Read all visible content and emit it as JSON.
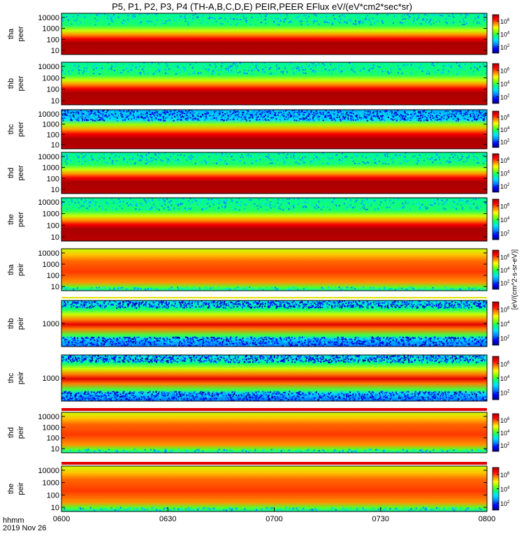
{
  "chart_data": {
    "type": "heatmap",
    "title": "P5, P1, P2, P3, P4 (TH-A,B,C,D,E) PEIR,PEER EFlux eV/(eV*cm2*sec*sr)",
    "x_ticks": [
      "0600",
      "0630",
      "0700",
      "0730",
      "0800"
    ],
    "x_range": [
      "06:00",
      "08:00"
    ],
    "x_units_label": "hhmm",
    "date_label": "2019 Nov 26",
    "colorbar_label": "[eV/(cm^2-s-sr-eV)]",
    "colormap": [
      "#000080",
      "#0000ff",
      "#0080ff",
      "#00e0ff",
      "#00ff80",
      "#80ff00",
      "#ffff00",
      "#ff8000",
      "#ff0000",
      "#a00000"
    ],
    "y_scale": "log",
    "panels": [
      {
        "probe": "tha",
        "product": "peer",
        "y_ticks": [
          "10",
          "100",
          "1000",
          "10000"
        ],
        "cb_ticks": [
          "10^2",
          "10^4",
          "10^6"
        ],
        "pattern": "electron_bright"
      },
      {
        "probe": "thb",
        "product": "peer",
        "y_ticks": [
          "10",
          "100",
          "1000",
          "10000"
        ],
        "cb_ticks": [
          "10^2",
          "10^4",
          "10^6"
        ],
        "pattern": "electron_bright"
      },
      {
        "probe": "thc",
        "product": "peer",
        "y_ticks": [
          "10",
          "100",
          "1000",
          "10000"
        ],
        "cb_ticks": [
          "10^2",
          "10^4",
          "10^6"
        ],
        "pattern": "electron_noisy"
      },
      {
        "probe": "thd",
        "product": "peer",
        "y_ticks": [
          "10",
          "100",
          "1000",
          "10000"
        ],
        "cb_ticks": [
          "10^2",
          "10^4",
          "10^6"
        ],
        "pattern": "electron_bright"
      },
      {
        "probe": "the",
        "product": "peer",
        "y_ticks": [
          "10",
          "100",
          "1000",
          "10000"
        ],
        "cb_ticks": [
          "10^2",
          "10^4",
          "10^6"
        ],
        "pattern": "electron_bright"
      },
      {
        "probe": "tha",
        "product": "peir",
        "y_ticks": [
          "10",
          "100",
          "1000",
          "10000"
        ],
        "cb_ticks": [
          "10^2",
          "10^4",
          "10^6"
        ],
        "pattern": "ion_wide"
      },
      {
        "probe": "thb",
        "product": "peir",
        "y_ticks": [
          "1000"
        ],
        "cb_ticks": [
          "10^2",
          "10^4",
          "10^6"
        ],
        "pattern": "ion_band"
      },
      {
        "probe": "thc",
        "product": "peir",
        "y_ticks": [
          "1000"
        ],
        "cb_ticks": [
          "10^2",
          "10^4",
          "10^6"
        ],
        "pattern": "ion_band"
      },
      {
        "probe": "thd",
        "product": "peir",
        "y_ticks": [
          "10",
          "100",
          "1000",
          "10000"
        ],
        "cb_ticks": [
          "10^2",
          "10^4",
          "10^6"
        ],
        "pattern": "ion_wide"
      },
      {
        "probe": "the",
        "product": "peir",
        "y_ticks": [
          "10",
          "100",
          "1000",
          "10000"
        ],
        "cb_ticks": [
          "10^2",
          "10^4",
          "10^6"
        ],
        "pattern": "ion_wide"
      }
    ]
  }
}
